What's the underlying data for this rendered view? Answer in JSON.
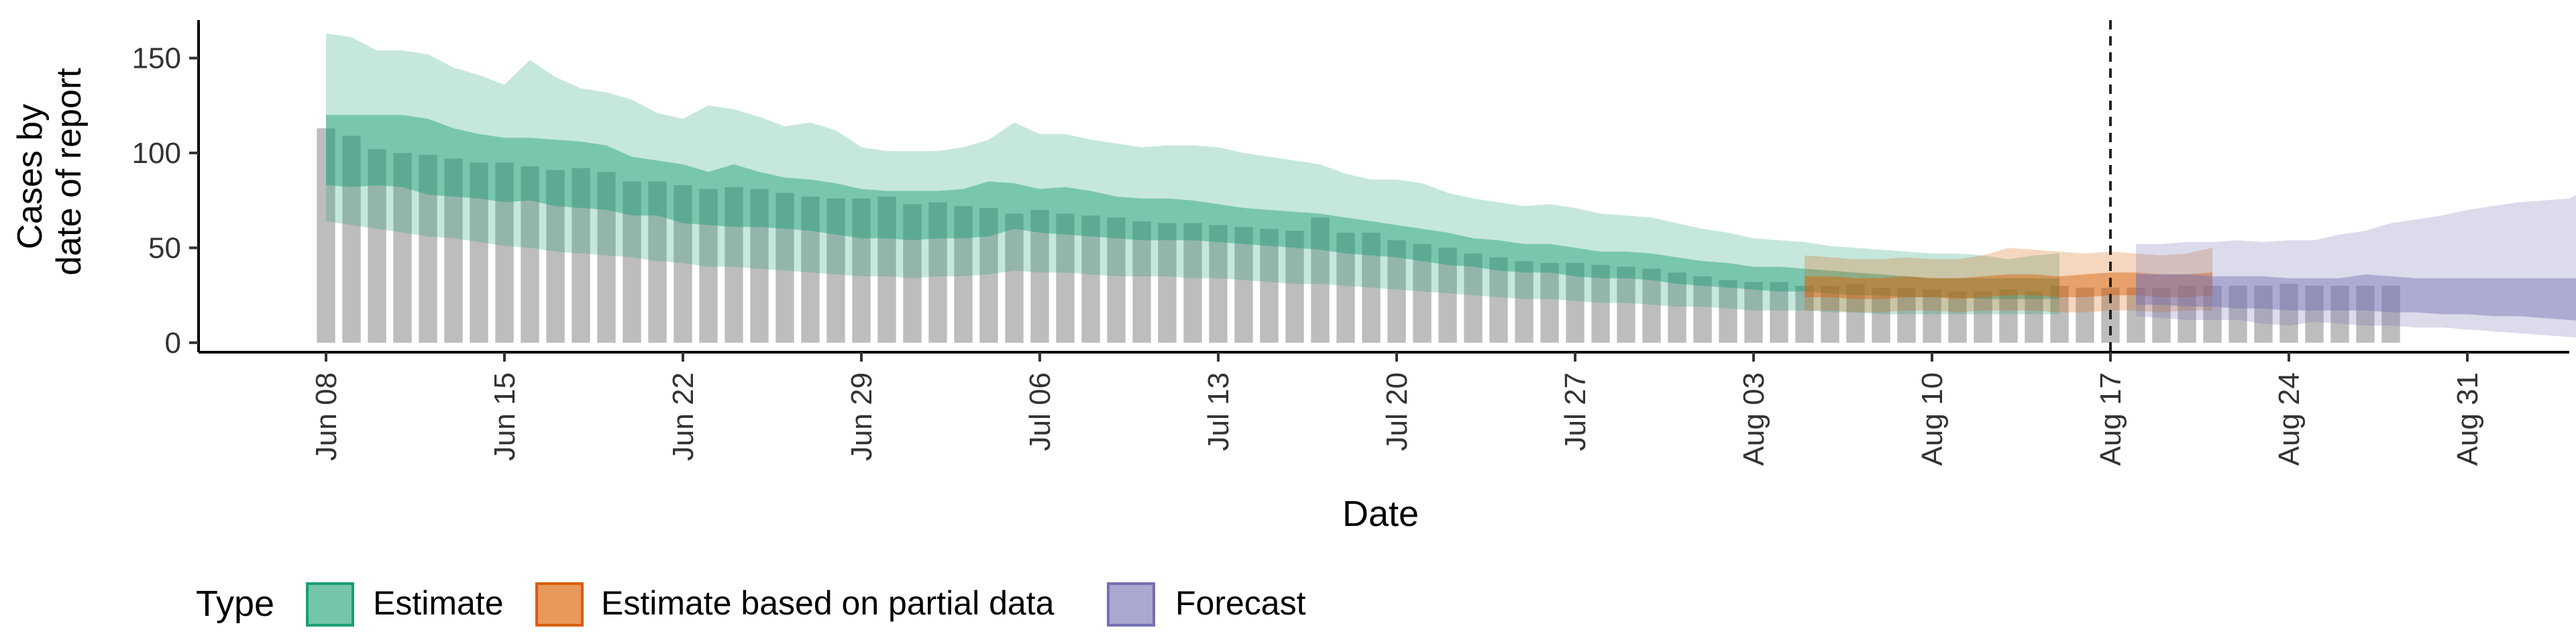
{
  "chart_data": {
    "type": "bar",
    "xlabel": "Date",
    "ylabel_lines": [
      "Cases by",
      "date of report"
    ],
    "ylim": [
      -5,
      170
    ],
    "y_ticks": [
      0,
      50,
      100,
      150
    ],
    "x_ticks": [
      {
        "date": "2020-06-08",
        "label": "Jun 08"
      },
      {
        "date": "2020-06-15",
        "label": "Jun 15"
      },
      {
        "date": "2020-06-22",
        "label": "Jun 22"
      },
      {
        "date": "2020-06-29",
        "label": "Jun 29"
      },
      {
        "date": "2020-07-06",
        "label": "Jul 06"
      },
      {
        "date": "2020-07-13",
        "label": "Jul 13"
      },
      {
        "date": "2020-07-20",
        "label": "Jul 20"
      },
      {
        "date": "2020-07-27",
        "label": "Jul 27"
      },
      {
        "date": "2020-08-03",
        "label": "Aug 03"
      },
      {
        "date": "2020-08-10",
        "label": "Aug 10"
      },
      {
        "date": "2020-08-17",
        "label": "Aug 17"
      },
      {
        "date": "2020-08-24",
        "label": "Aug 24"
      },
      {
        "date": "2020-08-31",
        "label": "Aug 31"
      }
    ],
    "xlim": [
      "2020-06-03",
      "2020-09-04"
    ],
    "vline_date": "2020-08-17",
    "reported_cases": {
      "start_date": "2020-06-08",
      "values": [
        113,
        109,
        102,
        100,
        99,
        97,
        95,
        95,
        93,
        91,
        92,
        90,
        85,
        85,
        83,
        81,
        82,
        81,
        79,
        77,
        76,
        76,
        77,
        73,
        74,
        72,
        71,
        68,
        70,
        68,
        67,
        66,
        64,
        63,
        63,
        62,
        61,
        60,
        59,
        66,
        58,
        58,
        54,
        52,
        50,
        47,
        45,
        43,
        42,
        42,
        41,
        40,
        39,
        37,
        35,
        33,
        32,
        32,
        30,
        30,
        31,
        29,
        29,
        28,
        27,
        27,
        28,
        27,
        30,
        29,
        29,
        29,
        29,
        30,
        30,
        30,
        30,
        31,
        30,
        30,
        30,
        30
      ]
    },
    "series": [
      {
        "name": "Estimate",
        "color": "#1b9e77",
        "start_date": "2020-06-08",
        "outer_upper": [
          163,
          161,
          154,
          154,
          152,
          145,
          141,
          136,
          149,
          140,
          134,
          132,
          128,
          121,
          118,
          125,
          123,
          119,
          114,
          116,
          112,
          103,
          101,
          101,
          101,
          103,
          107,
          116,
          110,
          110,
          107,
          105,
          103,
          104,
          104,
          103,
          100,
          98,
          96,
          94,
          89,
          86,
          86,
          84,
          79,
          76,
          74,
          72,
          73,
          71,
          68,
          67,
          66,
          63,
          60,
          58,
          55,
          54,
          53,
          51,
          50,
          49,
          48,
          47,
          47,
          46,
          44,
          46,
          47
        ],
        "inner_upper": [
          120,
          120,
          120,
          120,
          118,
          113,
          110,
          108,
          108,
          107,
          106,
          104,
          98,
          96,
          94,
          90,
          94,
          90,
          87,
          86,
          84,
          81,
          80,
          80,
          80,
          81,
          85,
          84,
          81,
          82,
          80,
          77,
          76,
          76,
          75,
          73,
          71,
          70,
          69,
          68,
          66,
          64,
          62,
          60,
          58,
          55,
          54,
          52,
          52,
          50,
          48,
          48,
          47,
          45,
          43,
          42,
          40,
          40,
          39,
          38,
          37,
          36,
          35,
          34,
          34,
          34,
          34,
          34,
          34
        ],
        "inner_lower": [
          83,
          82,
          83,
          82,
          78,
          77,
          76,
          74,
          75,
          72,
          71,
          70,
          67,
          67,
          63,
          62,
          61,
          61,
          60,
          59,
          57,
          55,
          55,
          54,
          55,
          55,
          56,
          60,
          58,
          57,
          56,
          55,
          54,
          54,
          54,
          53,
          52,
          51,
          50,
          49,
          47,
          46,
          45,
          43,
          41,
          40,
          38,
          37,
          37,
          35,
          34,
          34,
          33,
          31,
          30,
          29,
          28,
          27,
          27,
          26,
          25,
          25,
          24,
          24,
          24,
          23,
          23,
          23,
          23
        ],
        "outer_lower": [
          64,
          62,
          60,
          58,
          56,
          55,
          53,
          51,
          50,
          48,
          47,
          46,
          45,
          43,
          42,
          40,
          40,
          39,
          38,
          37,
          36,
          35,
          35,
          34,
          35,
          35,
          36,
          38,
          37,
          37,
          36,
          35,
          35,
          35,
          34,
          34,
          33,
          32,
          31,
          31,
          30,
          29,
          28,
          27,
          26,
          25,
          24,
          23,
          23,
          22,
          21,
          21,
          20,
          19,
          19,
          18,
          17,
          17,
          17,
          16,
          16,
          15,
          15,
          15,
          15,
          15,
          15,
          15,
          15
        ]
      },
      {
        "name": "Estimate based on partial data",
        "color": "#d95f02",
        "start_date": "2020-08-05",
        "outer_upper": [
          46,
          45,
          44,
          44,
          45,
          44,
          44,
          46,
          50,
          49,
          48,
          47,
          48,
          47,
          46,
          47,
          50
        ],
        "inner_upper": [
          35,
          35,
          34,
          34,
          35,
          34,
          34,
          35,
          36,
          36,
          35,
          36,
          37,
          37,
          36,
          36,
          37
        ],
        "inner_lower": [
          24,
          24,
          23,
          23,
          24,
          24,
          23,
          24,
          25,
          25,
          24,
          24,
          25,
          25,
          24,
          24,
          25
        ],
        "outer_lower": [
          17,
          17,
          16,
          16,
          17,
          17,
          16,
          17,
          17,
          17,
          16,
          16,
          17,
          17,
          16,
          17,
          17
        ]
      },
      {
        "name": "Forecast",
        "color": "#7570b3",
        "start_date": "2020-08-18",
        "outer_upper": [
          52,
          52,
          53,
          53,
          54,
          53,
          54,
          54,
          57,
          59,
          63,
          65,
          67,
          70,
          72,
          74,
          75,
          76,
          83,
          92
        ],
        "inner_upper": [
          36,
          36,
          36,
          35,
          35,
          35,
          34,
          34,
          34,
          36,
          35,
          34,
          34,
          34,
          34,
          34,
          34,
          34,
          34,
          34
        ],
        "inner_lower": [
          20,
          20,
          19,
          19,
          18,
          18,
          17,
          17,
          17,
          17,
          16,
          16,
          15,
          15,
          14,
          14,
          13,
          12,
          11,
          10
        ],
        "outer_lower": [
          14,
          13,
          12,
          12,
          12,
          10,
          9,
          11,
          10,
          9,
          9,
          8,
          8,
          7,
          6,
          5,
          4,
          3,
          2,
          1
        ]
      }
    ],
    "legend": {
      "title": "Type",
      "position": "bottom",
      "items": [
        {
          "label": "Estimate",
          "color": "#1b9e77"
        },
        {
          "label": "Estimate based on partial data",
          "color": "#d95f02"
        },
        {
          "label": "Forecast",
          "color": "#7570b3"
        }
      ]
    },
    "bar_color": "#bdbdbd",
    "grid": false
  }
}
